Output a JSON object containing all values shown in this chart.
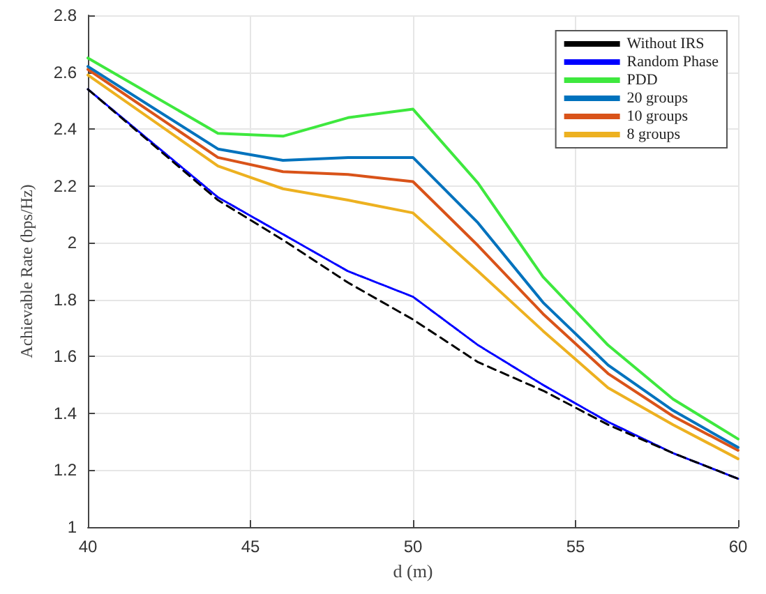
{
  "chart_data": {
    "type": "line",
    "xlabel": "d (m)",
    "ylabel": "Achievable Rate (bps/Hz)",
    "x": [
      40,
      44,
      46,
      48,
      50,
      52,
      54,
      56,
      58,
      60
    ],
    "series": [
      {
        "name": "Without IRS",
        "color": "#000000",
        "line_style": "dashed",
        "values": [
          2.54,
          2.15,
          2.01,
          1.86,
          1.73,
          1.58,
          1.48,
          1.36,
          1.26,
          1.17
        ]
      },
      {
        "name": "Random Phase",
        "color": "#0000ff",
        "line_style": "dotted",
        "values": [
          2.54,
          2.16,
          2.03,
          1.9,
          1.81,
          1.64,
          1.5,
          1.37,
          1.26,
          1.17
        ]
      },
      {
        "name": "PDD",
        "color": "#3ee83e",
        "values": [
          2.65,
          2.385,
          2.375,
          2.44,
          2.47,
          2.21,
          1.88,
          1.64,
          1.45,
          1.31
        ]
      },
      {
        "name": "20 groups",
        "color": "#0072bd",
        "values": [
          2.62,
          2.33,
          2.29,
          2.3,
          2.3,
          2.07,
          1.79,
          1.57,
          1.41,
          1.28
        ]
      },
      {
        "name": "10 groups",
        "color": "#d95319",
        "values": [
          2.61,
          2.3,
          2.25,
          2.24,
          2.215,
          1.99,
          1.75,
          1.54,
          1.39,
          1.27
        ]
      },
      {
        "name": "8 groups",
        "color": "#edb120",
        "values": [
          2.59,
          2.27,
          2.19,
          2.15,
          2.105,
          1.9,
          1.69,
          1.49,
          1.36,
          1.24
        ]
      }
    ],
    "xlim": [
      40,
      60
    ],
    "xticks": [
      40,
      45,
      50,
      55,
      60
    ],
    "ylim": [
      1,
      2.8
    ],
    "yticks": [
      1,
      1.2,
      1.4,
      1.6,
      1.8,
      2,
      2.2,
      2.4,
      2.6,
      2.8
    ],
    "grid": true,
    "legend": "top right",
    "marker": "none",
    "line_style": "solid"
  }
}
